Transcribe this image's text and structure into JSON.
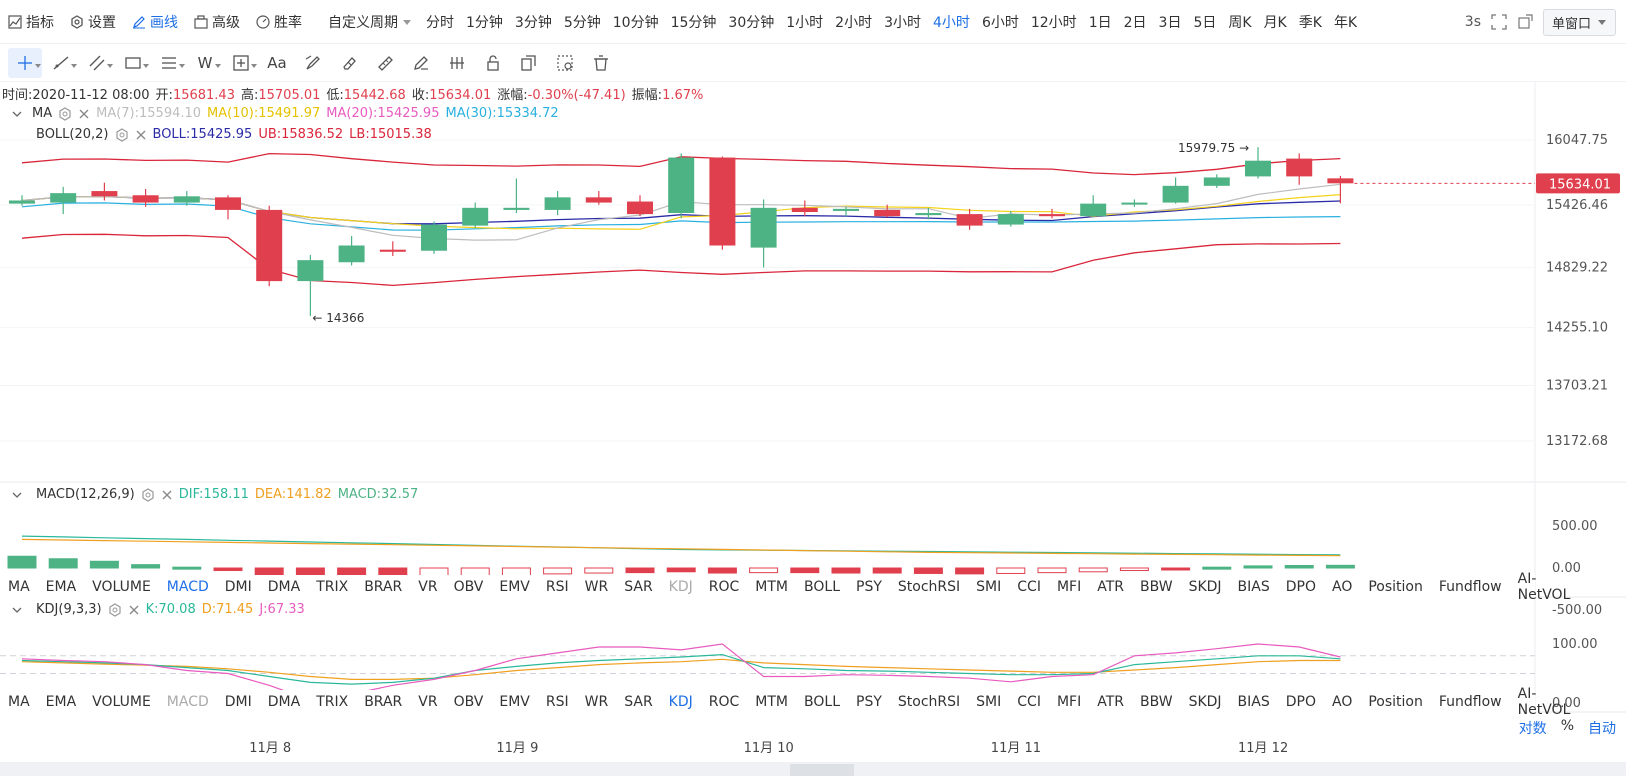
{
  "topbar": {
    "items": [
      {
        "label": "指标",
        "icon": "indicator-icon"
      },
      {
        "label": "设置",
        "icon": "gear-icon"
      },
      {
        "label": "画线",
        "icon": "pen-icon",
        "active": true
      },
      {
        "label": "高级",
        "icon": "briefcase-icon"
      },
      {
        "label": "胜率",
        "icon": "gauge-icon"
      }
    ],
    "custom_period": "自定义周期",
    "periods": [
      "分时",
      "1分钟",
      "3分钟",
      "5分钟",
      "10分钟",
      "15分钟",
      "30分钟",
      "1小时",
      "2小时",
      "3小时",
      "4小时",
      "6小时",
      "12小时",
      "1日",
      "2日",
      "3日",
      "5日",
      "周K",
      "月K",
      "季K",
      "年K"
    ],
    "active_period": "4小时",
    "refresh": "3s",
    "window_mode": "单窗口"
  },
  "drawbar": {
    "tools": [
      "crosshair-icon",
      "line-icon",
      "parallel-line-icon",
      "rect-icon",
      "fib-icon",
      "wave-icon",
      "measure-icon",
      "text-icon",
      "brush-icon",
      "eraser-icon",
      "ruler-icon",
      "pencil-icon",
      "pattern-icon",
      "lock-icon",
      "copy-icon",
      "settings-grid-icon",
      "trash-icon"
    ],
    "text_tool": "Aa",
    "wave_tool": "W"
  },
  "info": {
    "time_label": "时间:",
    "time": "2020-11-12 08:00",
    "open_label": "开:",
    "open": "15681.43",
    "high_label": "高:",
    "high": "15705.01",
    "low_label": "低:",
    "low": "15442.68",
    "close_label": "收:",
    "close": "15634.01",
    "change_label": "涨幅:",
    "change": "-0.30%(-47.41)",
    "amp_label": "振幅:",
    "amp": "1.67%"
  },
  "ma_legend": {
    "name": "MA",
    "ma7": "MA(7):15594.10",
    "ma10": "MA(10):15491.97",
    "ma20": "MA(20):15425.95",
    "ma30": "MA(30):15334.72"
  },
  "boll_legend": {
    "name": "BOLL(20,2)",
    "boll": "BOLL:15425.95",
    "ub": "UB:15836.52",
    "lb": "LB:15015.38"
  },
  "price_axis": [
    "16047.75",
    "15426.46",
    "14829.22",
    "14255.10",
    "13703.21",
    "13172.68"
  ],
  "current_price": "15634.01",
  "annotations": {
    "high": "15979.75",
    "low": "14366"
  },
  "macd_legend": {
    "name": "MACD(12,26,9)",
    "dif": "DIF:158.11",
    "dea": "DEA:141.82",
    "macd": "MACD:32.57"
  },
  "macd_axis": [
    "500.00",
    "0.00",
    "-500.00"
  ],
  "kdj_legend": {
    "name": "KDJ(9,3,3)",
    "k": "K:70.08",
    "d": "D:71.45",
    "j": "J:67.33"
  },
  "kdj_axis": [
    "100.00",
    "0.00"
  ],
  "indicators": [
    "MA",
    "EMA",
    "VOLUME",
    "MACD",
    "DMI",
    "DMA",
    "TRIX",
    "BRAR",
    "VR",
    "OBV",
    "EMV",
    "RSI",
    "WR",
    "SAR",
    "KDJ",
    "ROC",
    "MTM",
    "BOLL",
    "PSY",
    "StochRSI",
    "SMI",
    "CCI",
    "MFI",
    "ATR",
    "BBW",
    "SKDJ",
    "BIAS",
    "DPO",
    "AO",
    "Position",
    "Fundflow",
    "AI-NetVOL"
  ],
  "time_axis": [
    "11月 8",
    "11月 9",
    "11月 10",
    "11月 11",
    "11月 12"
  ],
  "bottom_right": {
    "log": "对数",
    "pct": "%",
    "auto": "自动"
  },
  "colors": {
    "up": "#4db384",
    "down": "#e0404e",
    "accent": "#1e6fe6",
    "ma7": "#bdbdbd",
    "ma10": "#f5d21a",
    "ma20": "#e85bbf",
    "ma30": "#2ab0e0",
    "boll": "#2b2ba8",
    "bands": "#d9263a"
  },
  "chart_data": {
    "type": "candlestick",
    "interval": "4小时",
    "candles": [
      {
        "o": 15440,
        "c": 15470,
        "h": 15520,
        "l": 15420
      },
      {
        "o": 15450,
        "c": 15540,
        "h": 15600,
        "l": 15340
      },
      {
        "o": 15560,
        "c": 15510,
        "h": 15640,
        "l": 15470
      },
      {
        "o": 15520,
        "c": 15450,
        "h": 15580,
        "l": 15410
      },
      {
        "o": 15450,
        "c": 15510,
        "h": 15560,
        "l": 15420
      },
      {
        "o": 15500,
        "c": 15380,
        "h": 15520,
        "l": 15290
      },
      {
        "o": 15380,
        "c": 14700,
        "h": 15420,
        "l": 14650
      },
      {
        "o": 14700,
        "c": 14900,
        "h": 14950,
        "l": 14366
      },
      {
        "o": 14880,
        "c": 15040,
        "h": 15130,
        "l": 14850
      },
      {
        "o": 15000,
        "c": 14980,
        "h": 15080,
        "l": 14940
      },
      {
        "o": 14990,
        "c": 15240,
        "h": 15270,
        "l": 14960
      },
      {
        "o": 15230,
        "c": 15400,
        "h": 15450,
        "l": 15210
      },
      {
        "o": 15380,
        "c": 15400,
        "h": 15680,
        "l": 15350
      },
      {
        "o": 15380,
        "c": 15500,
        "h": 15560,
        "l": 15330
      },
      {
        "o": 15500,
        "c": 15450,
        "h": 15560,
        "l": 15430
      },
      {
        "o": 15460,
        "c": 15340,
        "h": 15520,
        "l": 15320
      },
      {
        "o": 15350,
        "c": 15880,
        "h": 15920,
        "l": 15300
      },
      {
        "o": 15880,
        "c": 15040,
        "h": 15890,
        "l": 15000
      },
      {
        "o": 15020,
        "c": 15400,
        "h": 15480,
        "l": 14830
      },
      {
        "o": 15400,
        "c": 15360,
        "h": 15470,
        "l": 15320
      },
      {
        "o": 15370,
        "c": 15390,
        "h": 15410,
        "l": 15320
      },
      {
        "o": 15380,
        "c": 15320,
        "h": 15430,
        "l": 15310
      },
      {
        "o": 15330,
        "c": 15350,
        "h": 15400,
        "l": 15290
      },
      {
        "o": 15340,
        "c": 15230,
        "h": 15390,
        "l": 15190
      },
      {
        "o": 15240,
        "c": 15340,
        "h": 15370,
        "l": 15220
      },
      {
        "o": 15340,
        "c": 15320,
        "h": 15390,
        "l": 15300
      },
      {
        "o": 15320,
        "c": 15440,
        "h": 15520,
        "l": 15310
      },
      {
        "o": 15440,
        "c": 15450,
        "h": 15480,
        "l": 15410
      },
      {
        "o": 15450,
        "c": 15610,
        "h": 15690,
        "l": 15440
      },
      {
        "o": 15610,
        "c": 15690,
        "h": 15720,
        "l": 15590
      },
      {
        "o": 15700,
        "c": 15850,
        "h": 15979.75,
        "l": 15680
      },
      {
        "o": 15870,
        "c": 15700,
        "h": 15920,
        "l": 15620
      },
      {
        "o": 15681.43,
        "c": 15634.01,
        "h": 15705.01,
        "l": 15442.68
      }
    ]
  }
}
